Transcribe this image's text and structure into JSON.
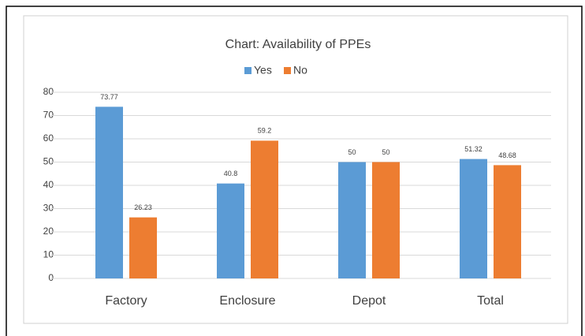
{
  "chart_data": {
    "type": "bar",
    "title": "Chart: Availability of PPEs",
    "categories": [
      "Factory",
      "Enclosure",
      "Depot",
      "Total"
    ],
    "series": [
      {
        "name": "Yes",
        "color": "#5b9bd5",
        "values": [
          73.77,
          40.8,
          50,
          51.32
        ]
      },
      {
        "name": "No",
        "color": "#ed7d31",
        "values": [
          26.23,
          59.2,
          50,
          48.68
        ]
      }
    ],
    "ylim": [
      0,
      80
    ],
    "yticks": [
      0,
      10,
      20,
      30,
      40,
      50,
      60,
      70,
      80
    ],
    "grid": true,
    "legend": "top"
  }
}
